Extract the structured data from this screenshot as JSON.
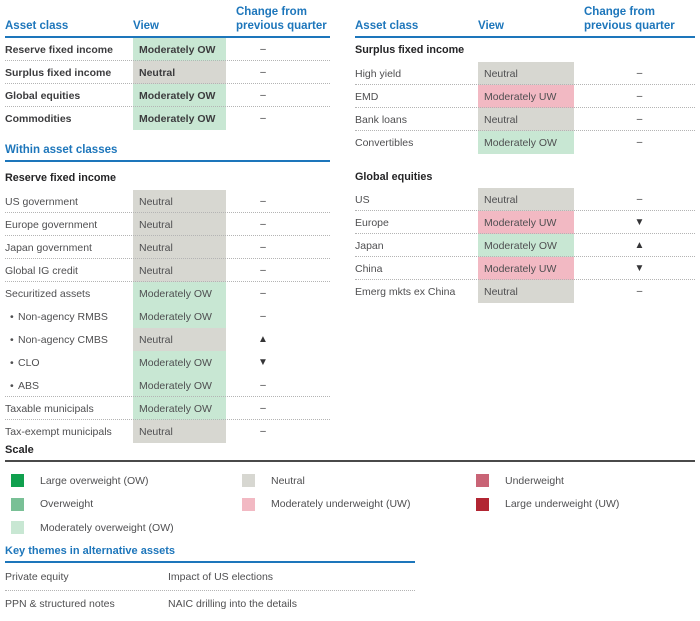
{
  "colors": {
    "heading_blue": "#1d76bb",
    "large_ow": "#10a04e",
    "ow": "#79c096",
    "mod_ow": "#c8e7d3",
    "neutral": "#d7d7d1",
    "mod_uw": "#f2b9c3",
    "uw": "#c96476",
    "large_uw": "#b22532"
  },
  "table_headers": {
    "asset_class": "Asset class",
    "view": "View",
    "change_line1": "Change from",
    "change_line2": "previous quarter"
  },
  "overview_table": {
    "rows": [
      {
        "label": "Reserve fixed income",
        "view": "Moderately OW",
        "view_key": "mod_ow",
        "change": "–"
      },
      {
        "label": "Surplus fixed income",
        "view": "Neutral",
        "view_key": "neutral",
        "change": "–"
      },
      {
        "label": "Global equities",
        "view": "Moderately OW",
        "view_key": "mod_ow",
        "change": "–"
      },
      {
        "label": "Commodities",
        "view": "Moderately OW",
        "view_key": "mod_ow",
        "change": "–"
      }
    ]
  },
  "within_section": {
    "title": "Within asset classes",
    "subheading": "Reserve fixed income",
    "rows": [
      {
        "label": "US government",
        "view": "Neutral",
        "view_key": "neutral",
        "change": "–"
      },
      {
        "label": "Europe government",
        "view": "Neutral",
        "view_key": "neutral",
        "change": "–"
      },
      {
        "label": "Japan government",
        "view": "Neutral",
        "view_key": "neutral",
        "change": "–"
      },
      {
        "label": "Global IG credit",
        "view": "Neutral",
        "view_key": "neutral",
        "change": "–"
      },
      {
        "label": "Securitized assets",
        "view": "Moderately OW",
        "view_key": "mod_ow",
        "change": "–"
      },
      {
        "label": "Non-agency RMBS",
        "bullet": "•",
        "view": "Moderately OW",
        "view_key": "mod_ow",
        "change": "–"
      },
      {
        "label": "Non-agency CMBS",
        "bullet": "•",
        "view": "Neutral",
        "view_key": "neutral",
        "change": "▲"
      },
      {
        "label": "CLO",
        "bullet": "•",
        "view": "Moderately OW",
        "view_key": "mod_ow",
        "change": "▼"
      },
      {
        "label": "ABS",
        "bullet": "•",
        "view": "Moderately OW",
        "view_key": "mod_ow",
        "change": "–"
      },
      {
        "label": "Taxable municipals",
        "view": "Moderately OW",
        "view_key": "mod_ow",
        "change": "–"
      },
      {
        "label": "Tax-exempt municipals",
        "view": "Neutral",
        "view_key": "neutral",
        "change": "–"
      }
    ]
  },
  "right_table": {
    "groups": [
      {
        "subheading": "Surplus fixed income",
        "rows": [
          {
            "label": "High yield",
            "view": "Neutral",
            "view_key": "neutral",
            "change": "–"
          },
          {
            "label": "EMD",
            "view": "Moderately UW",
            "view_key": "mod_uw",
            "change": "–"
          },
          {
            "label": "Bank loans",
            "view": "Neutral",
            "view_key": "neutral",
            "change": "–"
          },
          {
            "label": "Convertibles",
            "view": "Moderately OW",
            "view_key": "mod_ow",
            "change": "–"
          }
        ]
      },
      {
        "subheading": "Global equities",
        "rows": [
          {
            "label": "US",
            "view": "Neutral",
            "view_key": "neutral",
            "change": "–"
          },
          {
            "label": "Europe",
            "view": "Moderately UW",
            "view_key": "mod_uw",
            "change": "▼"
          },
          {
            "label": "Japan",
            "view": "Moderately OW",
            "view_key": "mod_ow",
            "change": "▲"
          },
          {
            "label": "China",
            "view": "Moderately UW",
            "view_key": "mod_uw",
            "change": "▼"
          },
          {
            "label": "Emerg mkts ex China",
            "view": "Neutral",
            "view_key": "neutral",
            "change": "–"
          }
        ]
      }
    ]
  },
  "scale": {
    "title": "Scale",
    "columns": [
      [
        {
          "label": "Large overweight (OW)",
          "key": "large_ow"
        },
        {
          "label": "Overweight",
          "key": "ow"
        },
        {
          "label": "Moderately overweight (OW)",
          "key": "mod_ow"
        }
      ],
      [
        {
          "label": "Neutral",
          "key": "neutral"
        },
        {
          "label": "Moderately underweight (UW)",
          "key": "mod_uw"
        }
      ],
      [
        {
          "label": "Underweight",
          "key": "uw"
        },
        {
          "label": "Large underweight (UW)",
          "key": "large_uw"
        }
      ]
    ]
  },
  "key_themes": {
    "title": "Key themes in alternative assets",
    "rows": [
      {
        "label": "Private equity",
        "theme": "Impact of US elections"
      },
      {
        "label": "PPN & structured notes",
        "theme": "NAIC drilling into the details"
      }
    ]
  }
}
